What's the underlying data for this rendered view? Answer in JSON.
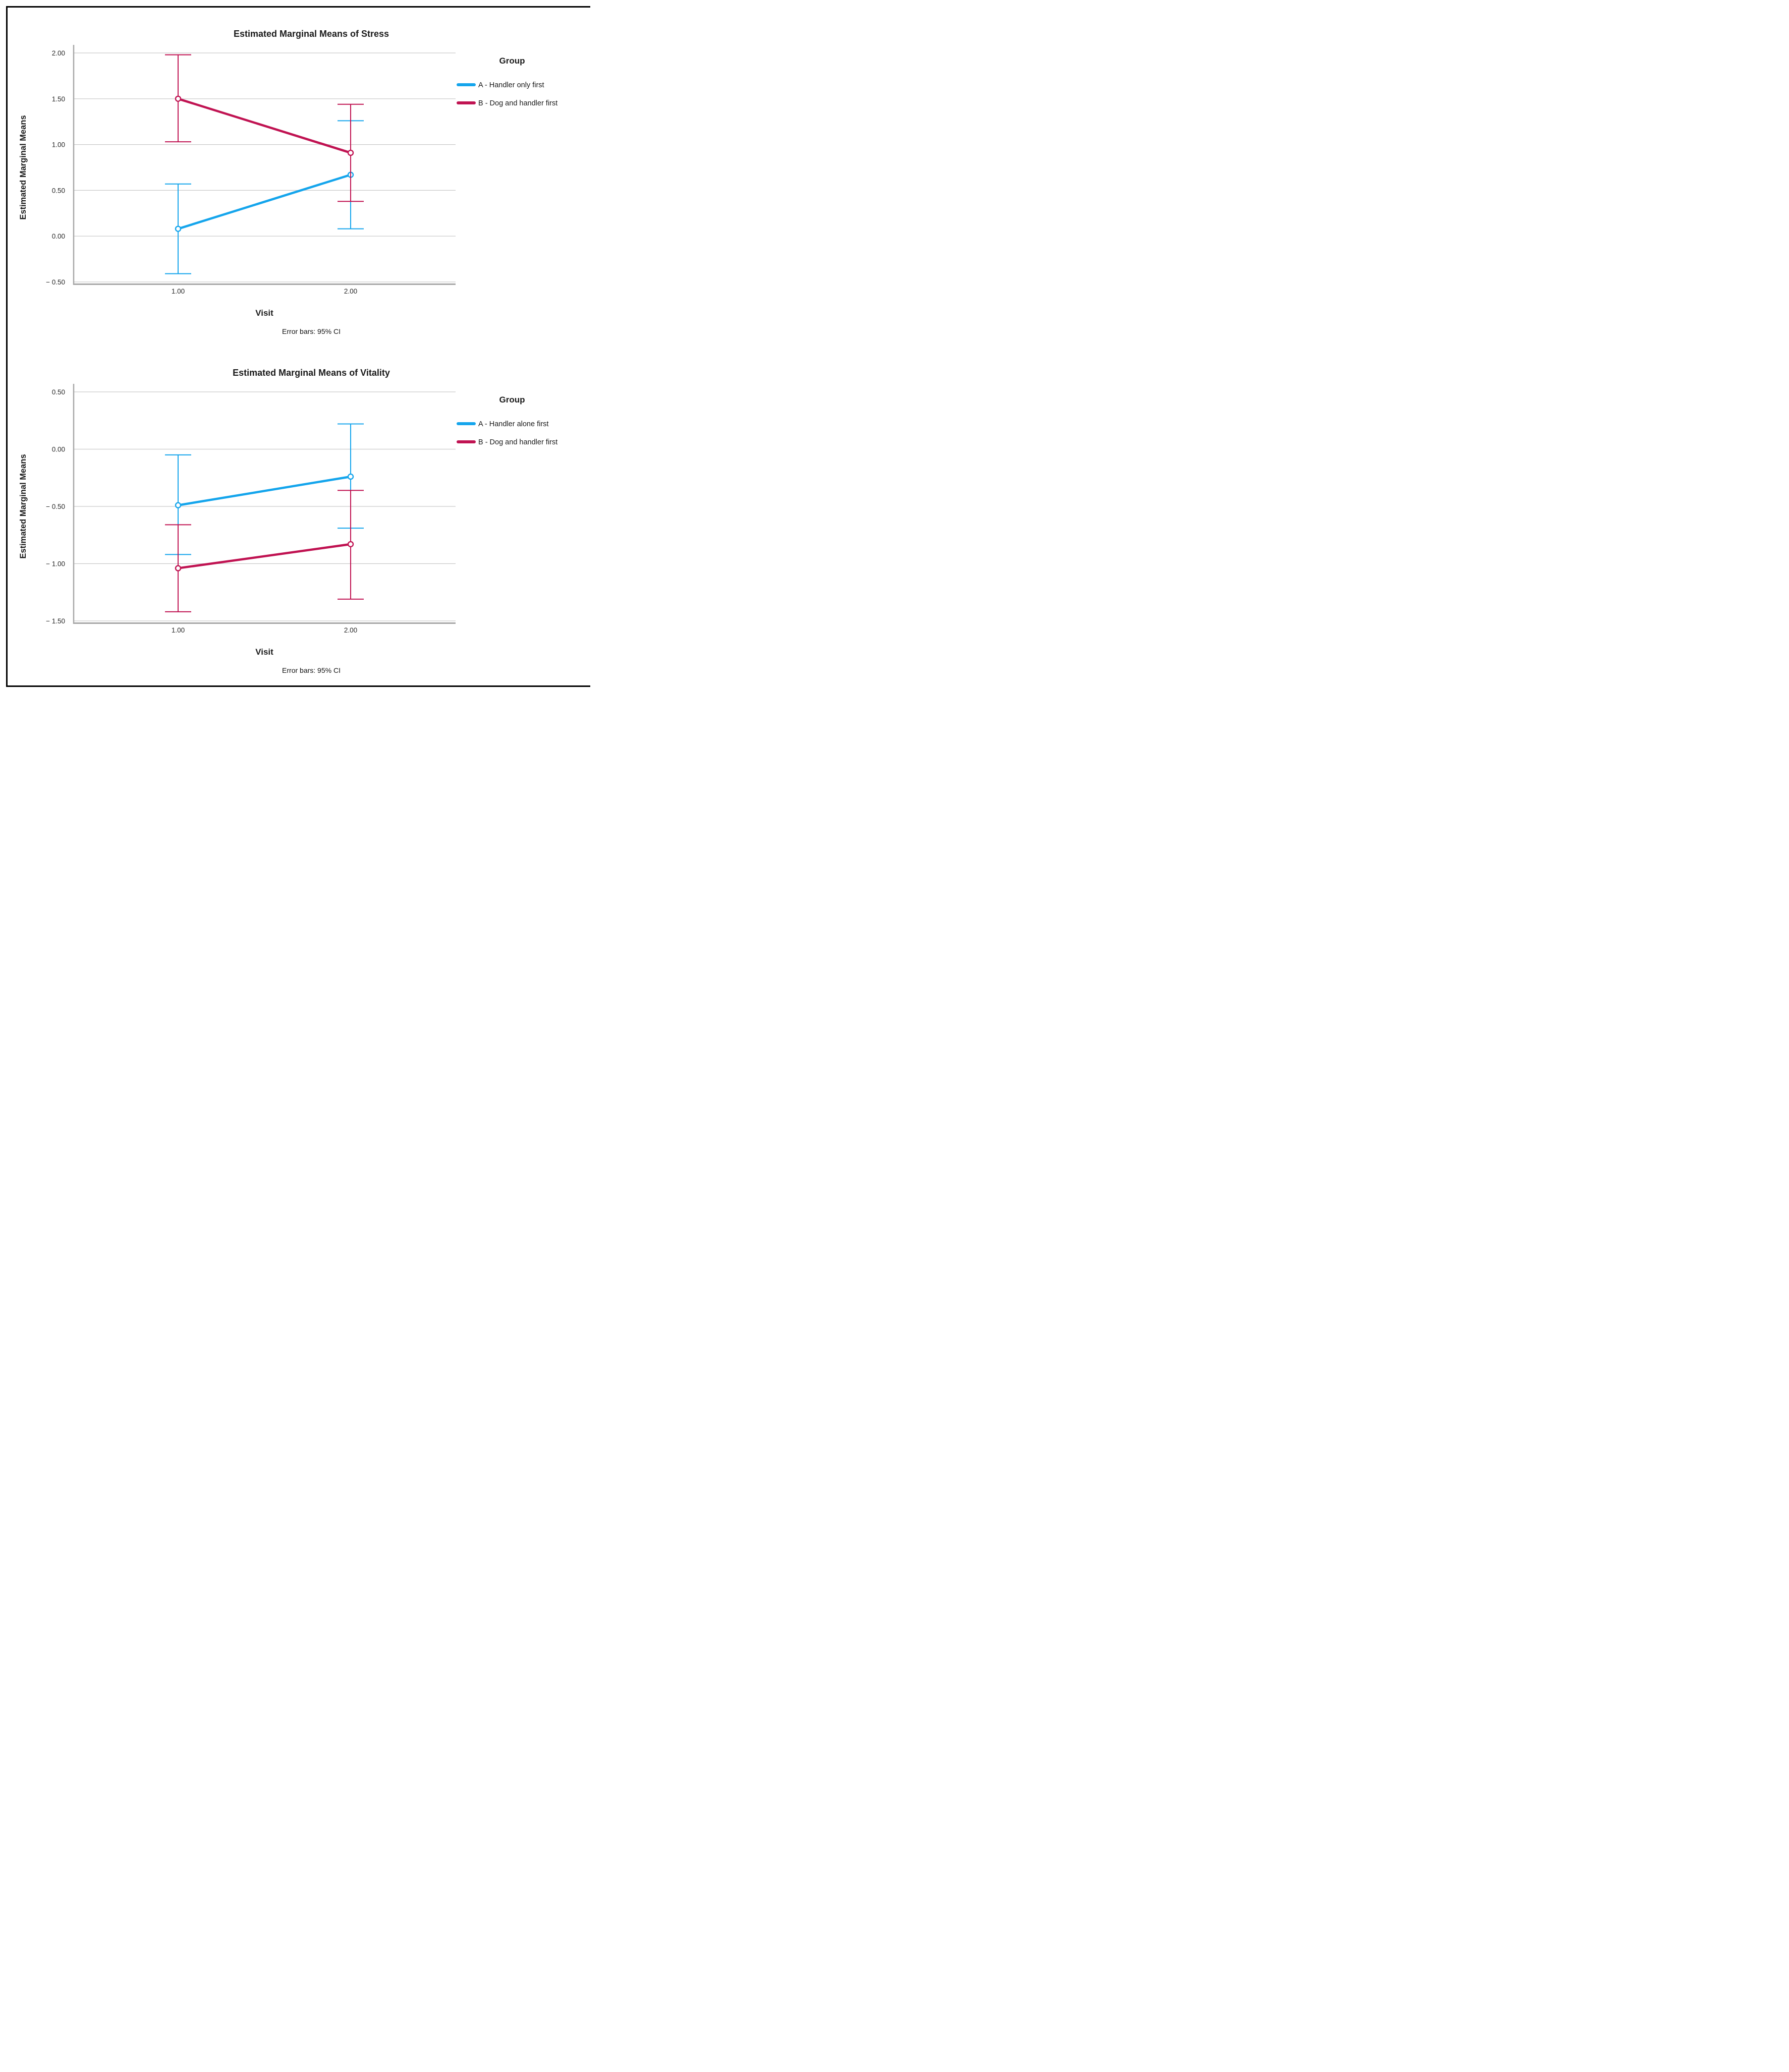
{
  "figure": {
    "background": "#ffffff",
    "border_color": "#000000",
    "gridline_color": "#c9c9c9",
    "axis_color": "#a8a8a8",
    "series_colors": {
      "blue": "#15a5ec",
      "crimson": "#c01352"
    }
  },
  "chart_data": [
    {
      "type": "line",
      "title": "Estimated Marginal Means of Stress",
      "xlabel": "Visit",
      "ylabel": "Estimated Marginal Means",
      "caption": "Error bars: 95% CI",
      "legend_title": "Group",
      "legend_position": "top-right",
      "grid": true,
      "x": [
        1,
        2
      ],
      "xtick_labels": [
        "1.00",
        "2.00"
      ],
      "ylim": [
        -0.5,
        2.0
      ],
      "yticks": [
        2.0,
        1.5,
        1.0,
        0.5,
        0.0,
        -0.5
      ],
      "ytick_labels": [
        "2.00",
        "1.50",
        "1.00",
        "0.50",
        "0.00",
        "− 0.50"
      ],
      "error_bars": "95% CI",
      "series": [
        {
          "name": "A - Handler only first",
          "color": "#15a5ec",
          "means": [
            0.08,
            0.67
          ],
          "ci_low": [
            -0.41,
            0.08
          ],
          "ci_high": [
            0.57,
            1.26
          ]
        },
        {
          "name": "B - Dog and handler first",
          "color": "#c01352",
          "means": [
            1.5,
            0.91
          ],
          "ci_low": [
            1.03,
            0.38
          ],
          "ci_high": [
            1.98,
            1.44
          ]
        }
      ]
    },
    {
      "type": "line",
      "title": "Estimated Marginal Means of Vitality",
      "xlabel": "Visit",
      "ylabel": "Estimated Marginal Means",
      "caption": "Error bars: 95% CI",
      "legend_title": "Group",
      "legend_position": "top-right",
      "grid": true,
      "x": [
        1,
        2
      ],
      "xtick_labels": [
        "1.00",
        "2.00"
      ],
      "ylim": [
        -1.5,
        0.5
      ],
      "yticks": [
        0.5,
        0.0,
        -0.5,
        -1.0,
        -1.5
      ],
      "ytick_labels": [
        "0.50",
        "0.00",
        "− 0.50",
        "− 1.00",
        "− 1.50"
      ],
      "error_bars": "95% CI",
      "series": [
        {
          "name": "A - Handler alone first",
          "color": "#15a5ec",
          "means": [
            -0.49,
            -0.24
          ],
          "ci_low": [
            -0.92,
            -0.69
          ],
          "ci_high": [
            -0.05,
            0.22
          ]
        },
        {
          "name": "B - Dog and handler first",
          "color": "#c01352",
          "means": [
            -1.04,
            -0.83
          ],
          "ci_low": [
            -1.42,
            -1.31
          ],
          "ci_high": [
            -0.66,
            -0.36
          ]
        }
      ]
    }
  ]
}
